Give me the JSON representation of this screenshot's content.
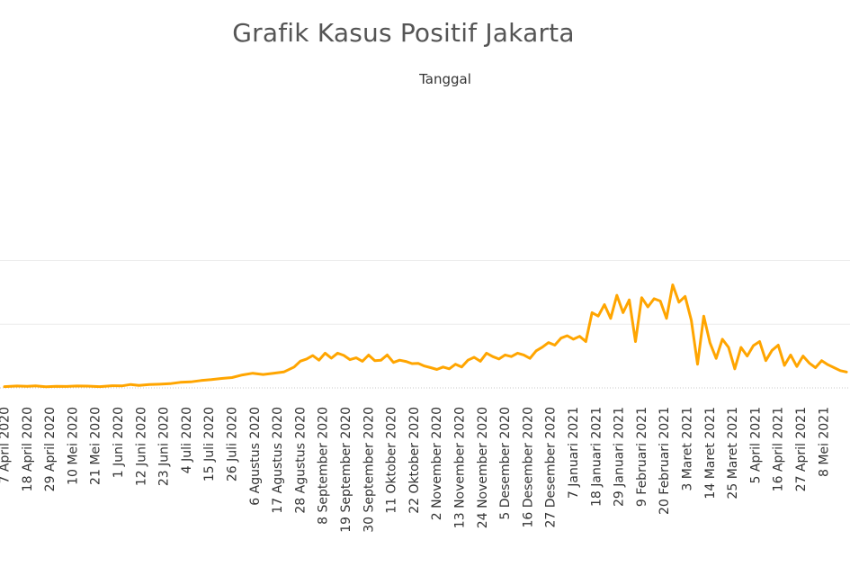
{
  "chart_data": {
    "type": "line",
    "title": "Grafik Kasus Positif Jakarta",
    "xlabel": "Tanggal",
    "ylabel": "",
    "x_start": "2020-04-07",
    "x_end": "2021-05-08",
    "ylim": [
      0,
      10000
    ],
    "grid": true,
    "series_color": "#FFA500",
    "x_tick_labels": [
      "7 April 2020",
      "18 April 2020",
      "29 April 2020",
      "10 Mei 2020",
      "21 Mei 2020",
      "1 Juni 2020",
      "12 Juni 2020",
      "23 Juni 2020",
      "4 Juli 2020",
      "15 Juli 2020",
      "26 Juli 2020",
      "6 Agustus 2020",
      "17 Agustus 2020",
      "28 Agustus 2020",
      "8 September 2020",
      "19 September 2020",
      "30 September 2020",
      "11 Oktober 2020",
      "22 Oktober 2020",
      "2 November 2020",
      "13 November 2020",
      "24 November 2020",
      "5 Desember 2020",
      "16 Desember 2020",
      "27 Desember 2020",
      "7 Januari 2021",
      "18 Januari 2021",
      "29 Januari 2021",
      "9 Februari 2021",
      "20 Februari 2021",
      "3 Maret 2021",
      "14 Maret 2021",
      "25 Maret 2021",
      "5 April 2021",
      "16 April 2021",
      "27 April 2021",
      "8 Mei 2021"
    ],
    "series": [
      {
        "values": [
          [
            0,
            100
          ],
          [
            6,
            150
          ],
          [
            11,
            120
          ],
          [
            15,
            160
          ],
          [
            20,
            90
          ],
          [
            25,
            130
          ],
          [
            30,
            110
          ],
          [
            35,
            150
          ],
          [
            40,
            140
          ],
          [
            46,
            100
          ],
          [
            52,
            170
          ],
          [
            57,
            160
          ],
          [
            61,
            270
          ],
          [
            65,
            190
          ],
          [
            70,
            260
          ],
          [
            75,
            290
          ],
          [
            80,
            330
          ],
          [
            85,
            440
          ],
          [
            90,
            470
          ],
          [
            95,
            580
          ],
          [
            100,
            650
          ],
          [
            105,
            740
          ],
          [
            110,
            810
          ],
          [
            115,
            1020
          ],
          [
            120,
            1150
          ],
          [
            125,
            1050
          ],
          [
            130,
            1150
          ],
          [
            135,
            1250
          ],
          [
            140,
            1640
          ],
          [
            143,
            2100
          ],
          [
            146,
            2270
          ],
          [
            149,
            2540
          ],
          [
            152,
            2180
          ],
          [
            155,
            2730
          ],
          [
            158,
            2330
          ],
          [
            161,
            2730
          ],
          [
            164,
            2550
          ],
          [
            167,
            2220
          ],
          [
            170,
            2360
          ],
          [
            173,
            2090
          ],
          [
            176,
            2580
          ],
          [
            179,
            2140
          ],
          [
            182,
            2180
          ],
          [
            185,
            2590
          ],
          [
            188,
            2000
          ],
          [
            191,
            2180
          ],
          [
            194,
            2080
          ],
          [
            197,
            1910
          ],
          [
            200,
            1930
          ],
          [
            203,
            1720
          ],
          [
            206,
            1590
          ],
          [
            209,
            1450
          ],
          [
            212,
            1640
          ],
          [
            215,
            1500
          ],
          [
            218,
            1860
          ],
          [
            221,
            1640
          ],
          [
            224,
            2180
          ],
          [
            227,
            2400
          ],
          [
            230,
            2090
          ],
          [
            233,
            2730
          ],
          [
            236,
            2460
          ],
          [
            239,
            2270
          ],
          [
            242,
            2590
          ],
          [
            245,
            2460
          ],
          [
            248,
            2730
          ],
          [
            251,
            2590
          ],
          [
            254,
            2320
          ],
          [
            257,
            2910
          ],
          [
            260,
            3200
          ],
          [
            263,
            3560
          ],
          [
            266,
            3360
          ],
          [
            269,
            3910
          ],
          [
            272,
            4100
          ],
          [
            275,
            3820
          ],
          [
            278,
            4050
          ],
          [
            281,
            3640
          ],
          [
            284,
            5910
          ],
          [
            287,
            5640
          ],
          [
            290,
            6540
          ],
          [
            293,
            5460
          ],
          [
            296,
            7270
          ],
          [
            299,
            5910
          ],
          [
            302,
            6910
          ],
          [
            305,
            3640
          ],
          [
            308,
            7090
          ],
          [
            311,
            6360
          ],
          [
            314,
            7000
          ],
          [
            317,
            6820
          ],
          [
            320,
            5460
          ],
          [
            323,
            8090
          ],
          [
            326,
            6730
          ],
          [
            329,
            7180
          ],
          [
            332,
            5300
          ],
          [
            335,
            1860
          ],
          [
            338,
            5640
          ],
          [
            341,
            3550
          ],
          [
            344,
            2320
          ],
          [
            347,
            3820
          ],
          [
            350,
            3180
          ],
          [
            353,
            1500
          ],
          [
            356,
            3180
          ],
          [
            359,
            2500
          ],
          [
            362,
            3320
          ],
          [
            365,
            3640
          ],
          [
            368,
            2140
          ],
          [
            371,
            2950
          ],
          [
            374,
            3360
          ],
          [
            377,
            1770
          ],
          [
            380,
            2590
          ],
          [
            383,
            1680
          ],
          [
            386,
            2500
          ],
          [
            389,
            1950
          ],
          [
            392,
            1590
          ],
          [
            395,
            2140
          ],
          [
            398,
            1820
          ],
          [
            401,
            1590
          ],
          [
            404,
            1360
          ],
          [
            407,
            1250
          ]
        ]
      }
    ]
  }
}
